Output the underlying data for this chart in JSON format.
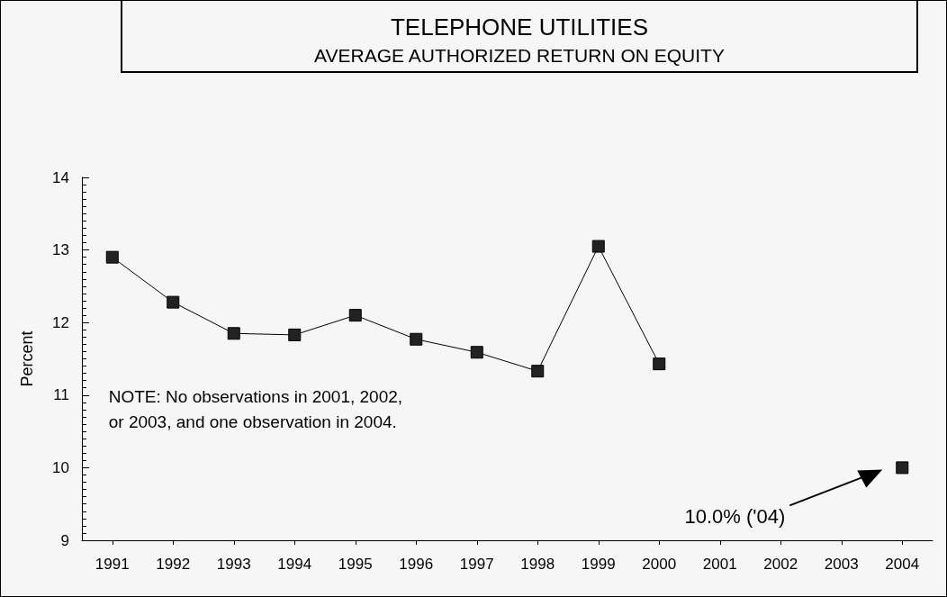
{
  "chart_data": {
    "type": "line",
    "title": "TELEPHONE UTILITIES",
    "subtitle": "AVERAGE AUTHORIZED RETURN ON EQUITY",
    "ylabel": "Percent",
    "categories": [
      "1991",
      "1992",
      "1993",
      "1994",
      "1995",
      "1996",
      "1997",
      "1998",
      "1999",
      "2000",
      "2001",
      "2002",
      "2003",
      "2004"
    ],
    "series": [
      {
        "color": "#222222",
        "values": [
          12.9,
          12.28,
          11.85,
          11.83,
          12.1,
          11.77,
          11.59,
          11.33,
          13.05,
          11.43,
          null,
          null,
          null,
          10.0
        ]
      }
    ],
    "ylim": [
      9,
      14
    ],
    "yticks": [
      9,
      10,
      11,
      12,
      13,
      14
    ],
    "grid": false,
    "marker": "square",
    "line_style": "solid",
    "annotations": [
      "NOTE: No observations in 2001, 2002,\nor 2003, and one observation in 2004.",
      "10.0% ('04)"
    ]
  }
}
